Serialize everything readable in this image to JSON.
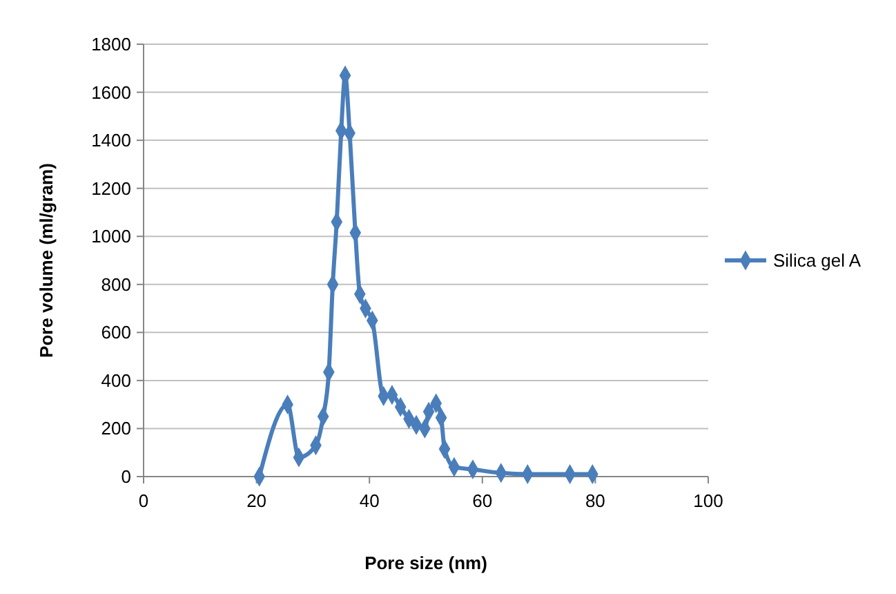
{
  "chart_data": {
    "type": "line",
    "xlabel": "Pore size (nm)",
    "ylabel": "Pore volume (ml/gram)",
    "xlim": [
      0,
      100
    ],
    "xticks": [
      0,
      20,
      40,
      60,
      80,
      100
    ],
    "ylim": [
      0,
      1800
    ],
    "yticks": [
      0,
      200,
      400,
      600,
      800,
      1000,
      1200,
      1400,
      1600,
      1800
    ],
    "grid": "y",
    "legend": "right",
    "marker": "diamond",
    "line_style": "solid",
    "series": [
      {
        "name": "Silica gel A",
        "color": "#4a7ebb",
        "x": [
          20.5,
          25.5,
          27.5,
          30.5,
          31.8,
          32.8,
          33.5,
          34.2,
          35,
          35.7,
          36.5,
          37.5,
          38.3,
          39.3,
          40.5,
          42.5,
          44,
          45.5,
          47,
          48.3,
          49.8,
          50.5,
          51.8,
          52.7,
          53.3,
          55,
          58.3,
          63.3,
          68,
          75.5,
          79.5
        ],
        "values": [
          0,
          300,
          80,
          130,
          250,
          435,
          800,
          1060,
          1440,
          1670,
          1430,
          1015,
          760,
          700,
          650,
          335,
          340,
          290,
          240,
          215,
          200,
          270,
          305,
          245,
          115,
          40,
          30,
          15,
          10,
          10,
          10
        ]
      }
    ]
  }
}
